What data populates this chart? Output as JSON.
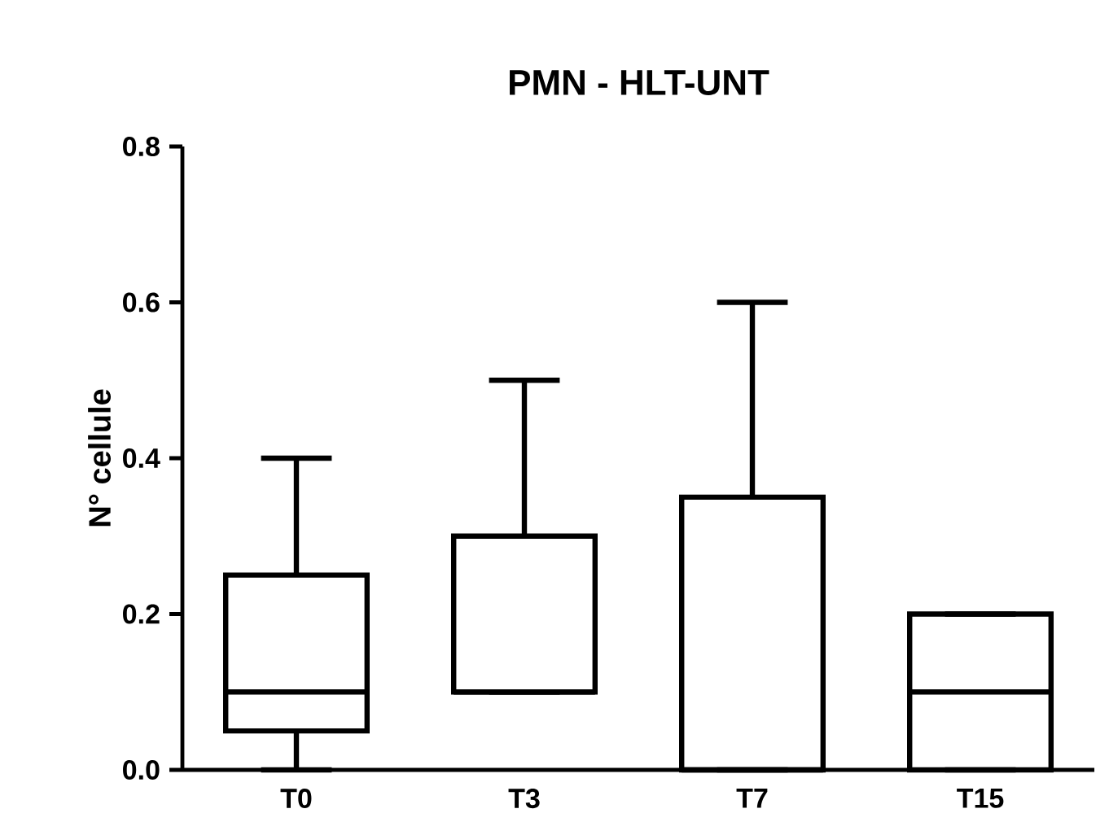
{
  "chart_data": {
    "type": "box",
    "title": "PMN - HLT-UNT",
    "ylabel": "N° cellule",
    "categories": [
      "T0",
      "T3",
      "T7",
      "T15"
    ],
    "color": "#000000",
    "ylim": [
      0,
      0.8
    ],
    "yticks": [
      {
        "value": 0,
        "label": "0.0"
      },
      0.2,
      0.4,
      0.6,
      0.8
    ],
    "grid": false,
    "boxes": [
      {
        "low": 0,
        "q1": 0.05,
        "median": 0.1,
        "q3": 0.25,
        "high": 0.4
      },
      {
        "low": 0.1,
        "q1": 0.1,
        "median": 0.1,
        "q3": 0.3,
        "high": 0.5
      },
      {
        "low": 0,
        "q1": 0,
        "median": 0,
        "q3": 0.35,
        "high": 0.6
      },
      {
        "low": 0,
        "q1": 0,
        "median": 0.1,
        "q3": 0.2,
        "high": 0.2
      }
    ]
  }
}
